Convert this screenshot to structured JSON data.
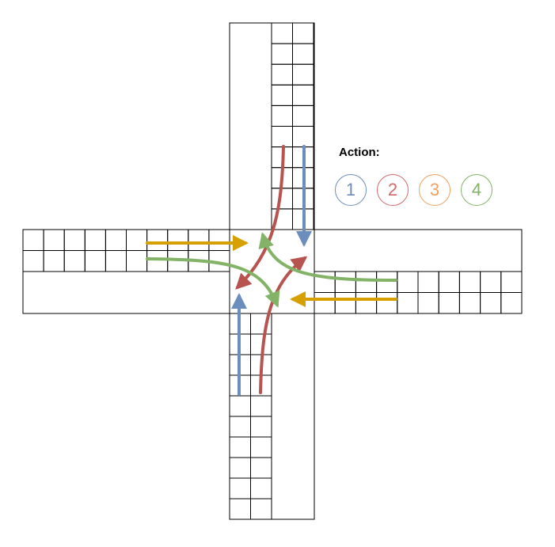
{
  "legend": {
    "title": "Action:",
    "actions": [
      {
        "label": "1",
        "color": "#6c8ebf"
      },
      {
        "label": "2",
        "color": "#d46a6a"
      },
      {
        "label": "3",
        "color": "#f0a060"
      },
      {
        "label": "4",
        "color": "#82b366"
      }
    ]
  },
  "arrow_colors": {
    "blue": "#6c8ebf",
    "red": "#b85450",
    "gold": "#d6a000",
    "green": "#82b366"
  },
  "grid": {
    "cell_rows_per_lane": 1,
    "stroke_color": "#000000"
  }
}
